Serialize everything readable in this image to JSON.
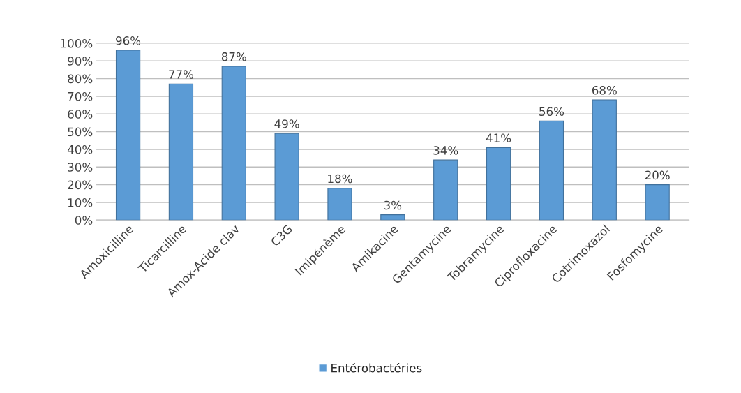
{
  "chart_data": {
    "type": "bar",
    "categories": [
      "Amoxicilline",
      "Ticarcilline",
      "Amox-Acide clav",
      "C3G",
      "Imipénème",
      "Amikacine",
      "Gentamycine",
      "Tobramycine",
      "Ciprofloxacine",
      "Cotrimoxazol",
      "Fosfomycine"
    ],
    "series": [
      {
        "name": "Entérobactéries",
        "color": "#5b9bd5",
        "values": [
          96,
          77,
          87,
          49,
          18,
          3,
          34,
          41,
          56,
          68,
          20
        ],
        "value_labels": [
          "96%",
          "77%",
          "87%",
          "49%",
          "18%",
          "3%",
          "34%",
          "41%",
          "56%",
          "68%",
          "20%"
        ]
      }
    ],
    "ylim": [
      0,
      100
    ],
    "yticks": [
      {
        "value": 0,
        "label": "0%"
      },
      {
        "value": 10,
        "label": "10%"
      },
      {
        "value": 20,
        "label": "20%"
      },
      {
        "value": 30,
        "label": "30%"
      },
      {
        "value": 40,
        "label": "40%"
      },
      {
        "value": 50,
        "label": "50%"
      },
      {
        "value": 60,
        "label": "60%"
      },
      {
        "value": 70,
        "label": "70%"
      },
      {
        "value": 80,
        "label": "80%"
      },
      {
        "value": 90,
        "label": "90%"
      },
      {
        "value": 100,
        "label": "100%"
      }
    ],
    "grid": "y",
    "legend": "bottom"
  }
}
